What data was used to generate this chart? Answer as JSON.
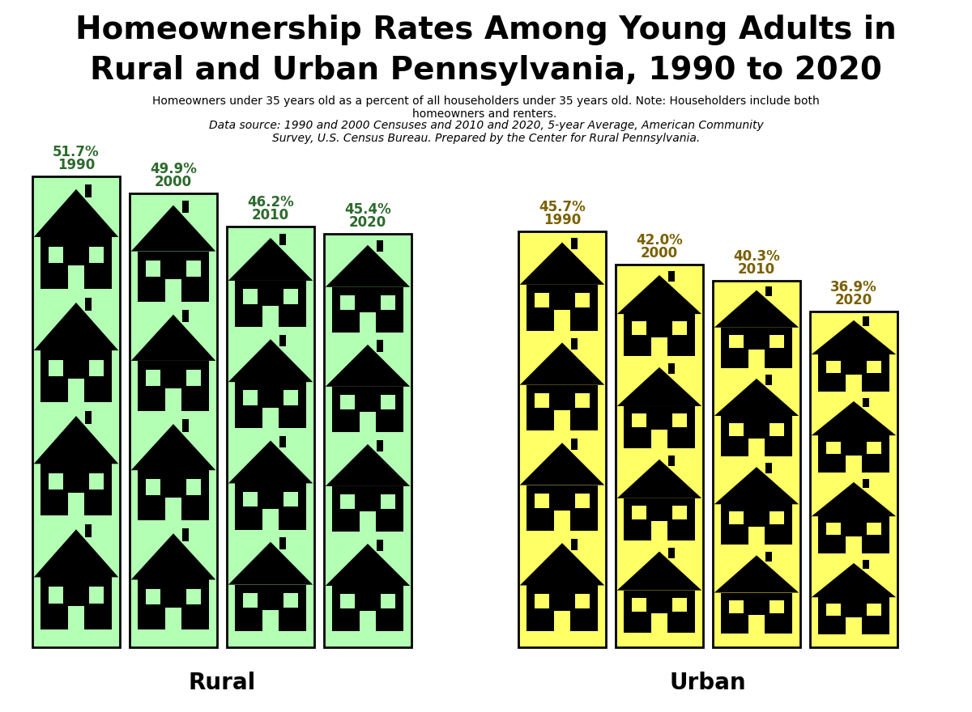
{
  "title_line1": "Homeownership Rates Among Young Adults in",
  "title_line2": "Rural and Urban Pennsylvania, 1990 to 2020",
  "subtitle_normal": "Homeowners under 35 years old as a percent of all householders under 35 years old. Note: Householders include both\nhomeowners and renters. ",
  "subtitle_italic": "Data source: 1990 and 2000 Censuses and 2010 and 2020, 5-year Average, American Community\nSurvey, U.S. Census Bureau. Prepared by the Center for Rural Pennsylvania.",
  "rural_years": [
    "1990",
    "2000",
    "2010",
    "2020"
  ],
  "rural_values": [
    51.7,
    49.9,
    46.2,
    45.4
  ],
  "urban_years": [
    "1990",
    "2000",
    "2010",
    "2020"
  ],
  "urban_values": [
    45.7,
    42.0,
    40.3,
    36.9
  ],
  "rural_color": "#b3ffb3",
  "urban_color": "#ffff66",
  "rural_text_color": "#2d6a2d",
  "urban_text_color": "#7a6000",
  "bar_edge_color": "#000000",
  "house_color": "#000000",
  "label_rural": "Rural",
  "label_urban": "Urban",
  "max_value": 52.0
}
